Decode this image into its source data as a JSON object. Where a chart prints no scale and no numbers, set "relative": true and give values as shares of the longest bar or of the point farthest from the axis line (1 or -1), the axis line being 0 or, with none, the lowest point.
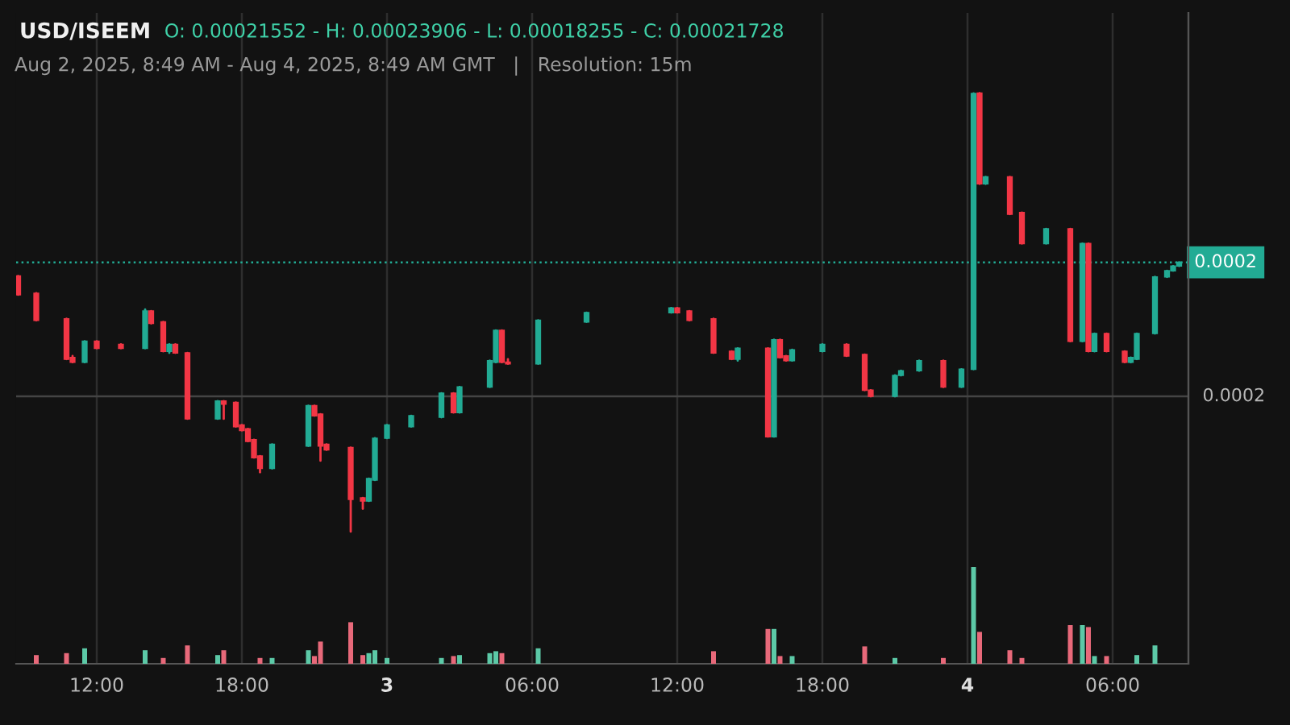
{
  "chart_data": [
    {
      "type": "candlestick",
      "title": "USD/ISEEM",
      "subtitle": "O: 0.00021552 - H: 0.00023906 - L: 0.00018255 - C: 0.00021728",
      "annotations": [
        "Aug 2, 2025, 8:49 AM - Aug 4, 2025, 8:49 AM GMT   |   Resolution: 15m"
      ],
      "x": [
        "2025-08-02T08:45",
        "2025-08-02T09:30",
        "2025-08-02T10:45",
        "2025-08-02T11:00",
        "2025-08-02T11:30",
        "2025-08-02T12:00",
        "2025-08-02T13:00",
        "2025-08-02T14:00",
        "2025-08-02T14:15",
        "2025-08-02T14:45",
        "2025-08-02T15:00",
        "2025-08-02T15:15",
        "2025-08-02T15:45",
        "2025-08-02T17:00",
        "2025-08-02T17:15",
        "2025-08-02T17:45",
        "2025-08-02T18:00",
        "2025-08-02T18:15",
        "2025-08-02T18:30",
        "2025-08-02T18:45",
        "2025-08-02T19:15",
        "2025-08-02T20:45",
        "2025-08-02T21:00",
        "2025-08-02T21:15",
        "2025-08-02T21:30",
        "2025-08-02T22:30",
        "2025-08-02T23:00",
        "2025-08-02T23:15",
        "2025-08-02T23:30",
        "2025-08-03T00:00",
        "2025-08-03T01:00",
        "2025-08-03T02:15",
        "2025-08-03T02:45",
        "2025-08-03T03:00",
        "2025-08-03T04:15",
        "2025-08-03T04:30",
        "2025-08-03T04:45",
        "2025-08-03T05:00",
        "2025-08-03T06:15",
        "2025-08-03T08:15",
        "2025-08-03T11:45",
        "2025-08-03T12:00",
        "2025-08-03T12:30",
        "2025-08-03T13:30",
        "2025-08-03T14:15",
        "2025-08-03T14:30",
        "2025-08-03T15:45",
        "2025-08-03T16:00",
        "2025-08-03T16:15",
        "2025-08-03T16:30",
        "2025-08-03T16:45",
        "2025-08-03T18:00",
        "2025-08-03T19:00",
        "2025-08-03T19:45",
        "2025-08-03T20:00",
        "2025-08-03T21:00",
        "2025-08-03T21:15",
        "2025-08-03T22:00",
        "2025-08-03T23:00",
        "2025-08-03T23:45",
        "2025-08-04T00:15",
        "2025-08-04T00:30",
        "2025-08-04T00:45",
        "2025-08-04T01:45",
        "2025-08-04T02:15",
        "2025-08-04T03:15",
        "2025-08-04T04:15",
        "2025-08-04T04:45",
        "2025-08-04T05:00",
        "2025-08-04T05:15",
        "2025-08-04T05:45",
        "2025-08-04T06:30",
        "2025-08-04T06:45",
        "2025-08-04T07:00",
        "2025-08-04T07:45",
        "2025-08-04T08:15",
        "2025-08-04T08:30",
        "2025-08-04T08:45"
      ],
      "ohlc": [
        [
          0.00021552,
          0.00021552,
          0.0002131,
          0.0002131
        ],
        [
          0.0002133,
          0.0002133,
          0.0002098,
          0.0002098
        ],
        [
          0.00021,
          0.00021,
          0.0002048,
          0.0002048
        ],
        [
          0.000205,
          0.0002052,
          0.0002044,
          0.0002044
        ],
        [
          0.0002044,
          0.0002071,
          0.0002044,
          0.0002071
        ],
        [
          0.0002071,
          0.0002071,
          0.0002062,
          0.0002062
        ],
        [
          0.0002067,
          0.0002067,
          0.0002062,
          0.0002062
        ],
        [
          0.0002062,
          0.0002112,
          0.0002062,
          0.000211
        ],
        [
          0.000211,
          0.000211,
          0.0002094,
          0.0002094
        ],
        [
          0.0002096,
          0.0002096,
          0.0002058,
          0.0002058
        ],
        [
          0.0002058,
          0.0002067,
          0.0002056,
          0.0002067
        ],
        [
          0.0002067,
          0.0002067,
          0.0002056,
          0.0002056
        ],
        [
          0.0002056,
          0.0002056,
          0.0001971,
          0.0001971
        ],
        [
          0.0001971,
          0.0001994,
          0.0001971,
          0.0001994
        ],
        [
          0.0001994,
          0.0001994,
          0.0001971,
          0.000199
        ],
        [
          0.0001992,
          0.0001992,
          0.0001961,
          0.0001961
        ],
        [
          0.0001963,
          0.0001963,
          0.0001956,
          0.0001956
        ],
        [
          0.0001958,
          0.0001958,
          0.0001942,
          0.0001942
        ],
        [
          0.0001944,
          0.0001944,
          0.0001921,
          0.0001921
        ],
        [
          0.0001923,
          0.0001923,
          0.0001902,
          0.0001907
        ],
        [
          0.0001907,
          0.0001938,
          0.0001907,
          0.0001938
        ],
        [
          0.0001936,
          0.0001988,
          0.0001936,
          0.0001988
        ],
        [
          0.0001988,
          0.0001988,
          0.0001975,
          0.0001975
        ],
        [
          0.0001977,
          0.0001977,
          0.0001917,
          0.0001936
        ],
        [
          0.0001938,
          0.0001938,
          0.0001931,
          0.0001931
        ],
        [
          0.0001934,
          0.0001934,
          0.00018255,
          0.0001867
        ],
        [
          0.0001869,
          0.0001869,
          0.0001855,
          0.0001865
        ],
        [
          0.0001865,
          0.0001894,
          0.0001865,
          0.0001894
        ],
        [
          0.0001892,
          0.0001946,
          0.0001892,
          0.0001946
        ],
        [
          0.0001946,
          0.0001963,
          0.0001946,
          0.0001963
        ],
        [
          0.0001961,
          0.0001975,
          0.0001961,
          0.0001975
        ],
        [
          0.0001973,
          0.0002004,
          0.0001973,
          0.0002004
        ],
        [
          0.0002004,
          0.0002004,
          0.0001979,
          0.0001979
        ],
        [
          0.0001979,
          0.0002012,
          0.0001979,
          0.0002012
        ],
        [
          0.0002012,
          0.0002046,
          0.0002012,
          0.0002046
        ],
        [
          0.0002044,
          0.0002085,
          0.0002044,
          0.0002085
        ],
        [
          0.0002085,
          0.0002085,
          0.0002044,
          0.0002044
        ],
        [
          0.0002044,
          0.0002048,
          0.0002042,
          0.0002042
        ],
        [
          0.0002042,
          0.0002098,
          0.0002042,
          0.0002098
        ],
        [
          0.0002096,
          0.0002108,
          0.0002096,
          0.0002108
        ],
        [
          0.0002108,
          0.0002114,
          0.0002108,
          0.0002114
        ],
        [
          0.0002114,
          0.0002114,
          0.0002108,
          0.0002108
        ],
        [
          0.000211,
          0.000211,
          0.0002098,
          0.0002098
        ],
        [
          0.00021,
          0.00021,
          0.0002056,
          0.0002056
        ],
        [
          0.0002058,
          0.0002058,
          0.0002048,
          0.0002048
        ],
        [
          0.0002048,
          0.0002062,
          0.0002046,
          0.0002062
        ],
        [
          0.0002062,
          0.0002062,
          0.0001948,
          0.0001948
        ],
        [
          0.0001948,
          0.0002073,
          0.0001948,
          0.0002073
        ],
        [
          0.0002073,
          0.0002073,
          0.000205,
          0.000205
        ],
        [
          0.0002052,
          0.0002052,
          0.0002046,
          0.0002046
        ],
        [
          0.0002046,
          0.000206,
          0.0002046,
          0.000206
        ],
        [
          0.0002058,
          0.0002067,
          0.0002058,
          0.0002067
        ],
        [
          0.0002067,
          0.0002067,
          0.0002052,
          0.0002052
        ],
        [
          0.0002054,
          0.0002054,
          0.0002008,
          0.0002008
        ],
        [
          0.0002008,
          0.0002008,
          0.0002,
          0.0002
        ],
        [
          0.0002,
          0.0002027,
          0.0002,
          0.0002027
        ],
        [
          0.0002027,
          0.0002033,
          0.0002027,
          0.0002033
        ],
        [
          0.0002033,
          0.0002046,
          0.0002033,
          0.0002046
        ],
        [
          0.0002046,
          0.0002046,
          0.0002012,
          0.0002012
        ],
        [
          0.0002012,
          0.0002035,
          0.0002012,
          0.0002035
        ],
        [
          0.0002035,
          0.00023906,
          0.0002035,
          0.00023906
        ],
        [
          0.0002391,
          0.0002391,
          0.0002274,
          0.0002274
        ],
        [
          0.0002274,
          0.0002283,
          0.0002274,
          0.0002283
        ],
        [
          0.0002283,
          0.0002283,
          0.0002235,
          0.0002235
        ],
        [
          0.0002237,
          0.0002237,
          0.0002197,
          0.0002197
        ],
        [
          0.0002197,
          0.0002216,
          0.0002197,
          0.0002216
        ],
        [
          0.0002216,
          0.0002216,
          0.0002071,
          0.0002071
        ],
        [
          0.0002071,
          0.0002197,
          0.0002071,
          0.0002197
        ],
        [
          0.0002197,
          0.0002197,
          0.0002058,
          0.0002058
        ],
        [
          0.0002058,
          0.0002081,
          0.0002058,
          0.0002081
        ],
        [
          0.0002081,
          0.0002081,
          0.0002058,
          0.0002058
        ],
        [
          0.0002058,
          0.0002058,
          0.0002044,
          0.0002044
        ],
        [
          0.0002044,
          0.000205,
          0.0002044,
          0.000205
        ],
        [
          0.0002048,
          0.0002081,
          0.0002048,
          0.0002081
        ],
        [
          0.0002081,
          0.0002154,
          0.0002081,
          0.0002154
        ],
        [
          0.0002154,
          0.0002162,
          0.0002154,
          0.0002162
        ],
        [
          0.0002162,
          0.0002168,
          0.0002162,
          0.0002168
        ],
        [
          0.0002168,
          0.00021728,
          0.0002168,
          0.00021728
        ]
      ],
      "colors": [
        "#f23645",
        "#f23645",
        "#f23645",
        "#f23645",
        "#22ab94",
        "#f23645",
        "#f23645",
        "#22ab94",
        "#f23645",
        "#f23645",
        "#22ab94",
        "#f23645",
        "#f23645",
        "#22ab94",
        "#f23645",
        "#f23645",
        "#f23645",
        "#f23645",
        "#f23645",
        "#f23645",
        "#22ab94",
        "#22ab94",
        "#f23645",
        "#f23645",
        "#f23645",
        "#f23645",
        "#f23645",
        "#22ab94",
        "#22ab94",
        "#22ab94",
        "#22ab94",
        "#22ab94",
        "#f23645",
        "#22ab94",
        "#22ab94",
        "#22ab94",
        "#f23645",
        "#f23645",
        "#22ab94",
        "#22ab94",
        "#22ab94",
        "#f23645",
        "#f23645",
        "#f23645",
        "#f23645",
        "#22ab94",
        "#f23645",
        "#22ab94",
        "#f23645",
        "#f23645",
        "#22ab94",
        "#22ab94",
        "#f23645",
        "#f23645",
        "#f23645",
        "#22ab94",
        "#22ab94",
        "#22ab94",
        "#f23645",
        "#22ab94",
        "#22ab94",
        "#f23645",
        "#22ab94",
        "#f23645",
        "#f23645",
        "#22ab94",
        "#f23645",
        "#22ab94",
        "#f23645",
        "#22ab94",
        "#f23645",
        "#f23645",
        "#22ab94",
        "#22ab94",
        "#22ab94",
        "#22ab94",
        "#22ab94",
        "#22ab94"
      ],
      "xlim": [
        "2025-08-02T08:40",
        "2025-08-04T09:08"
      ],
      "xticks": [
        {
          "value": "2025-08-02T12:00",
          "label": "12:00"
        },
        {
          "value": "2025-08-02T18:00",
          "label": "18:00"
        },
        {
          "value": "2025-08-03T00:00",
          "label": "3"
        },
        {
          "value": "2025-08-03T06:00",
          "label": "06:00"
        },
        {
          "value": "2025-08-03T12:00",
          "label": "12:00"
        },
        {
          "value": "2025-08-03T18:00",
          "label": "18:00"
        },
        {
          "value": "2025-08-04T00:00",
          "label": "4"
        },
        {
          "value": "2025-08-04T06:00",
          "label": "06:00"
        }
      ],
      "ylim": [
        0.00016551,
        0.00024945
      ],
      "grid": "x",
      "ref_lines": [
        {
          "axis": "y",
          "value": 0.00021728,
          "label": "0.0002",
          "color": "#22ab94",
          "line_style": "dotted"
        },
        {
          "axis": "y",
          "value": 0.0002,
          "label": "0.0002",
          "color": "#444444",
          "line_style": "solid"
        }
      ],
      "tick_labels": "x"
    },
    {
      "type": "bar",
      "relative": true,
      "x": [
        "2025-08-02T09:30",
        "2025-08-02T10:45",
        "2025-08-02T11:30",
        "2025-08-02T14:00",
        "2025-08-02T14:45",
        "2025-08-02T15:45",
        "2025-08-02T17:00",
        "2025-08-02T17:15",
        "2025-08-02T18:45",
        "2025-08-02T19:15",
        "2025-08-02T20:45",
        "2025-08-02T21:00",
        "2025-08-02T21:15",
        "2025-08-02T22:30",
        "2025-08-02T23:00",
        "2025-08-02T23:15",
        "2025-08-02T23:30",
        "2025-08-03T00:00",
        "2025-08-03T02:15",
        "2025-08-03T02:45",
        "2025-08-03T03:00",
        "2025-08-03T04:15",
        "2025-08-03T04:30",
        "2025-08-03T04:45",
        "2025-08-03T06:15",
        "2025-08-03T13:30",
        "2025-08-03T15:45",
        "2025-08-03T16:00",
        "2025-08-03T16:15",
        "2025-08-03T16:45",
        "2025-08-03T19:45",
        "2025-08-03T21:00",
        "2025-08-03T23:00",
        "2025-08-04T00:15",
        "2025-08-04T00:30",
        "2025-08-04T01:45",
        "2025-08-04T02:15",
        "2025-08-04T04:15",
        "2025-08-04T04:45",
        "2025-08-04T05:00",
        "2025-08-04T05:15",
        "2025-08-04T05:45",
        "2025-08-04T07:00",
        "2025-08-04T07:45"
      ],
      "values": [
        0.09,
        0.11,
        0.16,
        0.14,
        0.06,
        0.19,
        0.09,
        0.14,
        0.06,
        0.06,
        0.14,
        0.08,
        0.23,
        0.43,
        0.09,
        0.11,
        0.14,
        0.06,
        0.06,
        0.08,
        0.09,
        0.11,
        0.13,
        0.11,
        0.16,
        0.13,
        0.36,
        0.36,
        0.08,
        0.08,
        0.18,
        0.06,
        0.06,
        1,
        0.33,
        0.14,
        0.06,
        0.4,
        0.4,
        0.38,
        0.08,
        0.08,
        0.09,
        0.19
      ],
      "colors": [
        "#e8697a",
        "#e8697a",
        "#5cc9a7",
        "#5cc9a7",
        "#e8697a",
        "#e8697a",
        "#5cc9a7",
        "#e8697a",
        "#e8697a",
        "#5cc9a7",
        "#5cc9a7",
        "#e8697a",
        "#e8697a",
        "#e8697a",
        "#e8697a",
        "#5cc9a7",
        "#5cc9a7",
        "#5cc9a7",
        "#5cc9a7",
        "#e8697a",
        "#5cc9a7",
        "#5cc9a7",
        "#5cc9a7",
        "#e8697a",
        "#5cc9a7",
        "#e8697a",
        "#e8697a",
        "#5cc9a7",
        "#e8697a",
        "#5cc9a7",
        "#e8697a",
        "#5cc9a7",
        "#e8697a",
        "#5cc9a7",
        "#e8697a",
        "#e8697a",
        "#e8697a",
        "#e8697a",
        "#5cc9a7",
        "#e8697a",
        "#5cc9a7",
        "#e8697a",
        "#5cc9a7",
        "#5cc9a7"
      ],
      "xlim": [
        "2025-08-02T08:40",
        "2025-08-04T09:08"
      ],
      "tick_labels": false
    }
  ]
}
